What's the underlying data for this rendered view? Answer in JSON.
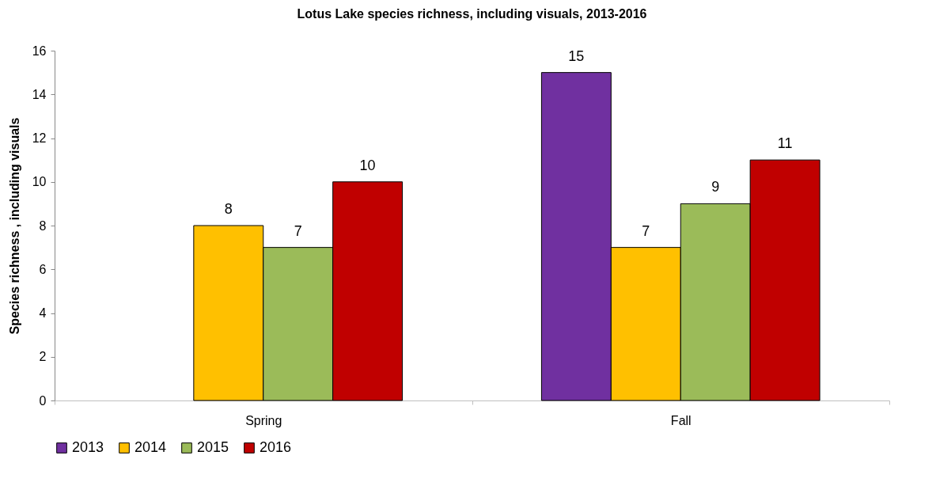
{
  "chart_data": {
    "type": "bar",
    "title": "Lotus Lake species richness, including visuals, 2013-2016",
    "ylabel": "Species richness , including visuals",
    "categories": [
      "Spring",
      "Fall"
    ],
    "series": [
      {
        "name": "2013",
        "color": "#7030a0",
        "values": [
          null,
          15
        ]
      },
      {
        "name": "2014",
        "color": "#ffc000",
        "values": [
          8,
          7
        ]
      },
      {
        "name": "2015",
        "color": "#9bbb59",
        "values": [
          7,
          9
        ]
      },
      {
        "name": "2016",
        "color": "#c00000",
        "values": [
          10,
          11
        ]
      }
    ],
    "ylim": [
      0,
      16
    ],
    "yticks": [
      0,
      2,
      4,
      6,
      8,
      10,
      12,
      14,
      16
    ],
    "grid": false,
    "legend": "bottom",
    "data_labels": true
  }
}
